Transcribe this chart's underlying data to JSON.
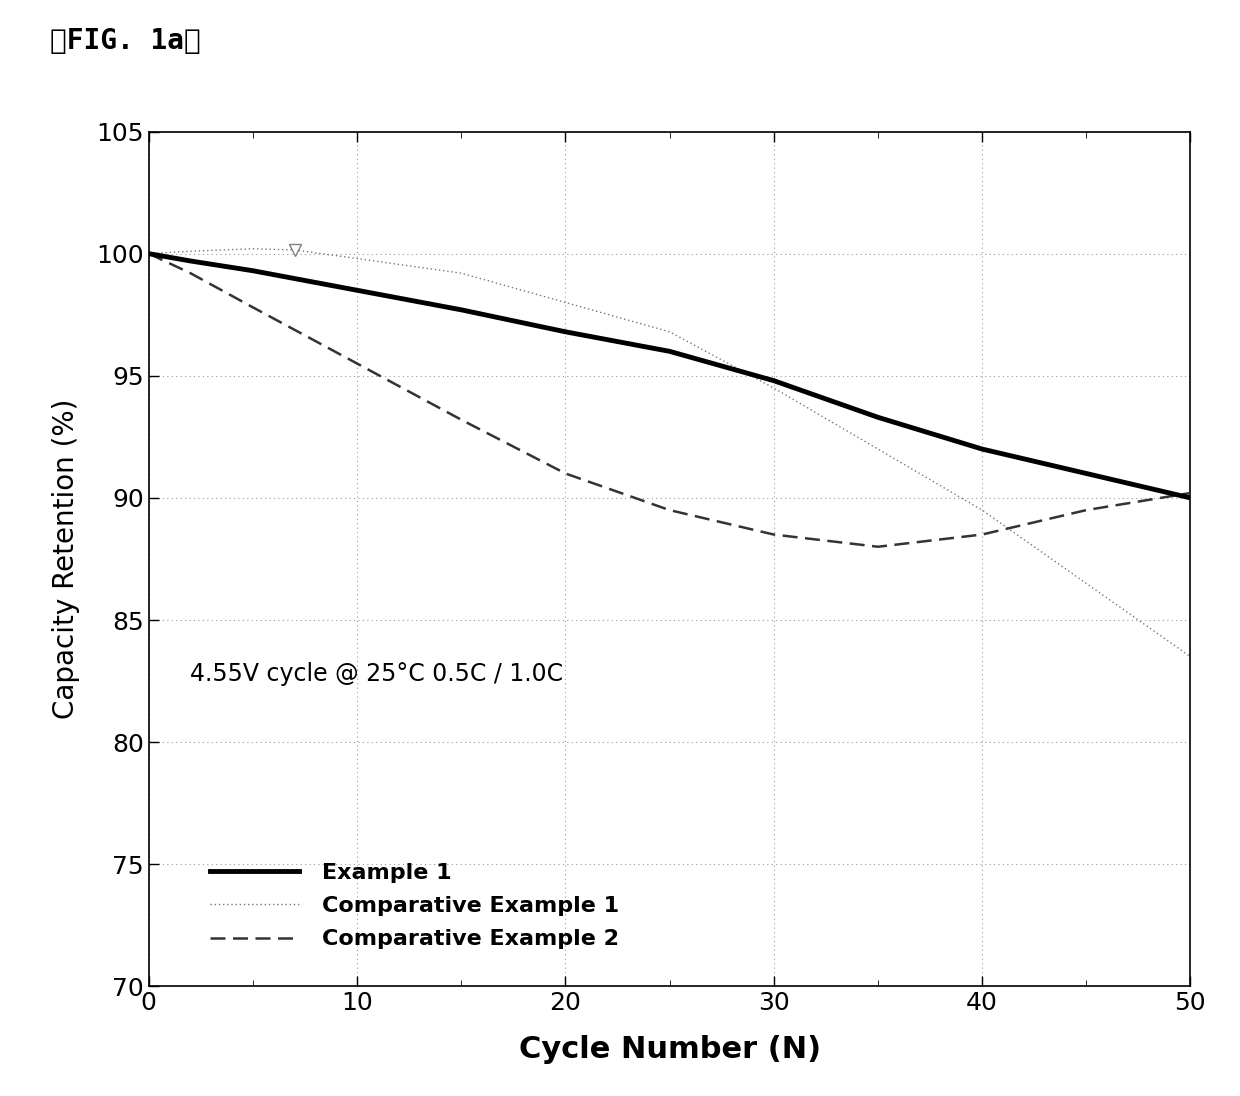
{
  "title": "』FIG. 1a』",
  "title_raw": "【FIG. 1a】",
  "xlabel": "Cycle Number (N)",
  "ylabel": "Capacity Retention (%)",
  "annotation": "4.55V cycle @ 25°C 0.5C / 1.0C",
  "xlim": [
    0,
    50
  ],
  "ylim": [
    70,
    105
  ],
  "xticks": [
    0,
    10,
    20,
    30,
    40,
    50
  ],
  "yticks": [
    70,
    75,
    80,
    85,
    90,
    95,
    100,
    105
  ],
  "background_color": "#ffffff",
  "grid_color": "#999999",
  "example1": {
    "x": [
      0,
      2,
      5,
      10,
      15,
      20,
      25,
      30,
      35,
      40,
      45,
      50
    ],
    "y": [
      100,
      99.7,
      99.3,
      98.5,
      97.7,
      96.8,
      96.0,
      94.8,
      93.3,
      92.0,
      91.0,
      90.0
    ],
    "color": "#000000",
    "linewidth": 3.5,
    "linestyle": "solid",
    "label": "Example 1"
  },
  "comp_example1": {
    "x": [
      0,
      2,
      5,
      7,
      10,
      15,
      20,
      25,
      30,
      35,
      40,
      45,
      50
    ],
    "y": [
      100,
      100.1,
      100.2,
      100.15,
      99.8,
      99.2,
      98.0,
      96.8,
      94.5,
      92.0,
      89.5,
      86.5,
      83.5
    ],
    "color": "#777777",
    "linewidth": 1.0,
    "linestyle": "dotted",
    "label": "Comparative Example 1"
  },
  "comp_example2": {
    "x": [
      0,
      2,
      5,
      10,
      15,
      20,
      25,
      30,
      35,
      40,
      45,
      50
    ],
    "y": [
      100,
      99.2,
      97.8,
      95.5,
      93.2,
      91.0,
      89.5,
      88.5,
      88.0,
      88.5,
      89.5,
      90.2
    ],
    "color": "#333333",
    "linewidth": 1.8,
    "linestyle": "dashed",
    "label": "Comparative Example 2"
  },
  "marker_x": 7,
  "marker_y": 100.15,
  "figsize": [
    12.4,
    10.96
  ],
  "dpi": 100
}
